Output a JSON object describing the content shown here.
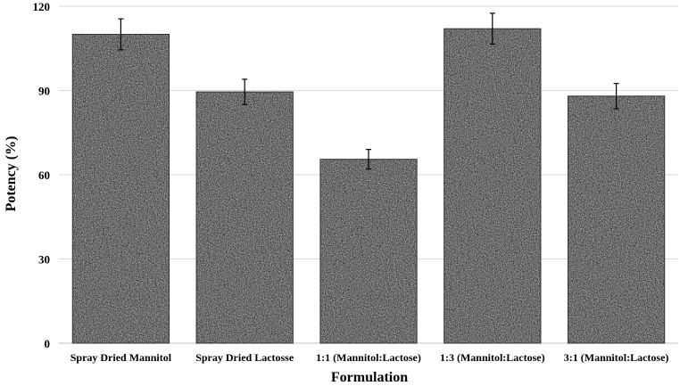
{
  "chart_data": {
    "type": "bar",
    "title": "",
    "xlabel": "Formulation",
    "ylabel": "Potency (%)",
    "ylim": [
      0,
      120
    ],
    "yticks": [
      0,
      30,
      60,
      90,
      120
    ],
    "grid": true,
    "legend": "none",
    "categories": [
      "Spray Dried Mannitol",
      "Spray Dried Lactosse",
      "1:1 (Mannitol:Lactose)",
      "1:3 (Mannitol:Lactose)",
      "3:1 (Mannitol:Lactose)"
    ],
    "values": [
      110,
      89.5,
      65.5,
      112,
      88
    ],
    "error": [
      5.5,
      4.5,
      3.5,
      5.5,
      4.5
    ],
    "bar_fill": "speckled-gray",
    "colors": {
      "bar_dark": "#2e2e2e",
      "bar_light": "#b5b5b5",
      "grid": "#d9d9d9"
    }
  }
}
